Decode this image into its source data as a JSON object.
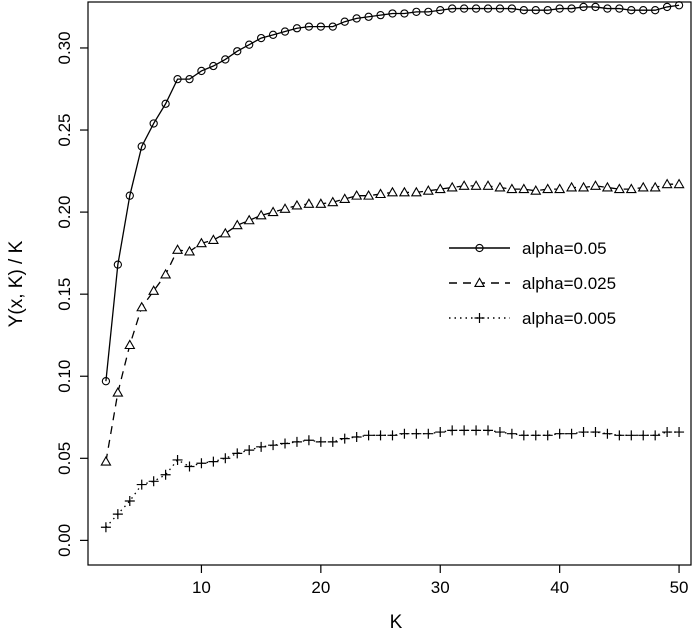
{
  "chart_data": {
    "type": "line",
    "xlabel": "K",
    "ylabel": "Y(x, K) / K",
    "xlim": [
      0.5,
      51
    ],
    "ylim": [
      -0.015,
      0.328
    ],
    "xticks": [
      10,
      20,
      30,
      40,
      50
    ],
    "xtick_labels": [
      "10",
      "20",
      "30",
      "40",
      "50"
    ],
    "yticks": [
      0.0,
      0.05,
      0.1,
      0.15,
      0.2,
      0.25,
      0.3
    ],
    "ytick_labels": [
      "0.00",
      "0.05",
      "0.10",
      "0.15",
      "0.20",
      "0.25",
      "0.30"
    ],
    "grid": false,
    "legend_position": "right",
    "x": [
      2,
      3,
      4,
      5,
      6,
      7,
      8,
      9,
      10,
      11,
      12,
      13,
      14,
      15,
      16,
      17,
      18,
      19,
      20,
      21,
      22,
      23,
      24,
      25,
      26,
      27,
      28,
      29,
      30,
      31,
      32,
      33,
      34,
      35,
      36,
      37,
      38,
      39,
      40,
      41,
      42,
      43,
      44,
      45,
      46,
      47,
      48,
      49,
      50
    ],
    "series": [
      {
        "name": "alpha=0.05",
        "line_style": "solid",
        "marker": "circle",
        "values": [
          0.097,
          0.168,
          0.21,
          0.24,
          0.254,
          0.266,
          0.281,
          0.281,
          0.286,
          0.289,
          0.293,
          0.298,
          0.302,
          0.306,
          0.308,
          0.31,
          0.312,
          0.313,
          0.313,
          0.313,
          0.316,
          0.318,
          0.319,
          0.32,
          0.321,
          0.321,
          0.322,
          0.322,
          0.323,
          0.324,
          0.324,
          0.324,
          0.324,
          0.324,
          0.324,
          0.323,
          0.323,
          0.323,
          0.324,
          0.324,
          0.325,
          0.325,
          0.324,
          0.324,
          0.323,
          0.323,
          0.323,
          0.325,
          0.326
        ]
      },
      {
        "name": "alpha=0.025",
        "line_style": "dashed",
        "marker": "triangle",
        "values": [
          0.048,
          0.09,
          0.119,
          0.142,
          0.152,
          0.162,
          0.177,
          0.176,
          0.181,
          0.183,
          0.187,
          0.192,
          0.195,
          0.198,
          0.2,
          0.202,
          0.204,
          0.205,
          0.205,
          0.206,
          0.208,
          0.21,
          0.21,
          0.211,
          0.212,
          0.212,
          0.212,
          0.213,
          0.214,
          0.215,
          0.216,
          0.216,
          0.216,
          0.215,
          0.214,
          0.214,
          0.213,
          0.214,
          0.214,
          0.215,
          0.215,
          0.216,
          0.215,
          0.214,
          0.214,
          0.215,
          0.215,
          0.217,
          0.217
        ]
      },
      {
        "name": "alpha=0.005",
        "line_style": "dotted",
        "marker": "plus",
        "values": [
          0.008,
          0.016,
          0.024,
          0.034,
          0.036,
          0.04,
          0.049,
          0.045,
          0.047,
          0.048,
          0.05,
          0.053,
          0.055,
          0.057,
          0.058,
          0.059,
          0.06,
          0.061,
          0.06,
          0.06,
          0.062,
          0.063,
          0.064,
          0.064,
          0.064,
          0.065,
          0.065,
          0.065,
          0.066,
          0.067,
          0.067,
          0.067,
          0.067,
          0.066,
          0.065,
          0.064,
          0.064,
          0.064,
          0.065,
          0.065,
          0.066,
          0.066,
          0.065,
          0.064,
          0.064,
          0.064,
          0.064,
          0.066,
          0.066
        ]
      }
    ]
  }
}
